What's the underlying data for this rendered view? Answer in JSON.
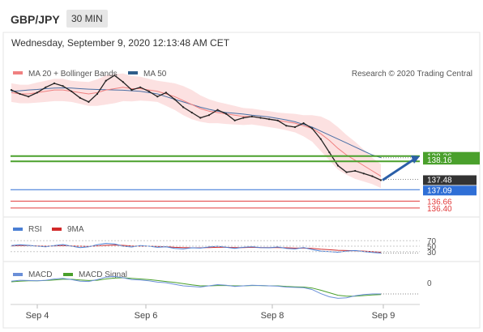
{
  "header": {
    "symbol": "GBP/JPY",
    "timeframe": "30 MIN",
    "timestamp": "Wednesday, September 9, 2020 12:13:48 AM CET"
  },
  "colors": {
    "price": "#222222",
    "ma20": "#f08080",
    "band_fill": "#fbd4d4",
    "ma50": "#4a6fa5",
    "resistance": "#4aa02c",
    "pivot": "#333333",
    "support_blue": "#2f6fd6",
    "support_red": "#e23b3b",
    "arrow": "#2b5fa8",
    "rsi": "#4a7fd4",
    "rsi_ma": "#d22a2a",
    "macd": "#6a8fd8",
    "macd_signal": "#4aa02c"
  },
  "chart_data": [
    {
      "type": "line",
      "name": "price",
      "legend": [
        {
          "label": "MA 20 + Bollinger Bands",
          "color": "#f08080"
        },
        {
          "label": "MA 50",
          "color": "#2f5d8a"
        }
      ],
      "credit": "Research © 2020 Trading Central",
      "x_ticks": [
        "Sep 4",
        "Sep 6",
        "Sep 8",
        "Sep 9"
      ],
      "close": [
        140.85,
        140.7,
        140.6,
        140.75,
        140.95,
        141.1,
        141.0,
        140.8,
        140.55,
        140.4,
        140.7,
        141.2,
        141.4,
        141.15,
        140.85,
        140.95,
        140.8,
        140.6,
        140.75,
        140.5,
        140.2,
        140.0,
        139.8,
        139.9,
        140.1,
        139.95,
        139.7,
        139.8,
        139.85,
        139.8,
        139.75,
        139.7,
        139.5,
        139.45,
        139.6,
        139.4,
        139.0,
        138.5,
        138.0,
        137.75,
        137.8,
        137.7,
        137.6,
        137.45
      ],
      "ma20": [
        140.75,
        140.7,
        140.7,
        140.75,
        140.8,
        140.85,
        140.85,
        140.8,
        140.75,
        140.7,
        140.75,
        140.85,
        140.9,
        140.95,
        140.9,
        140.9,
        140.85,
        140.8,
        140.7,
        140.6,
        140.45,
        140.3,
        140.15,
        140.05,
        140.0,
        139.95,
        139.9,
        139.85,
        139.85,
        139.8,
        139.75,
        139.7,
        139.65,
        139.6,
        139.5,
        139.4,
        139.2,
        138.95,
        138.65,
        138.4,
        138.2,
        138.0,
        137.8,
        137.6
      ],
      "ma50": [
        140.8,
        140.82,
        140.85,
        140.87,
        140.9,
        140.92,
        140.93,
        140.92,
        140.9,
        140.88,
        140.87,
        140.86,
        140.85,
        140.84,
        140.82,
        140.8,
        140.75,
        140.7,
        140.6,
        140.5,
        140.4,
        140.3,
        140.2,
        140.12,
        140.05,
        140.0,
        139.97,
        139.94,
        139.9,
        139.87,
        139.83,
        139.78,
        139.72,
        139.65,
        139.55,
        139.45,
        139.3,
        139.15,
        139.0,
        138.85,
        138.7,
        138.55,
        138.4,
        138.3
      ],
      "band_width": [
        0.35,
        0.35,
        0.35,
        0.38,
        0.4,
        0.42,
        0.42,
        0.4,
        0.42,
        0.45,
        0.5,
        0.55,
        0.55,
        0.52,
        0.48,
        0.45,
        0.42,
        0.4,
        0.45,
        0.5,
        0.55,
        0.55,
        0.5,
        0.45,
        0.4,
        0.38,
        0.35,
        0.32,
        0.3,
        0.3,
        0.3,
        0.3,
        0.32,
        0.35,
        0.4,
        0.5,
        0.65,
        0.75,
        0.8,
        0.75,
        0.7,
        0.6,
        0.5,
        0.45
      ],
      "levels": [
        {
          "value": 138.36,
          "label": "138.36",
          "color": "#4aa02c"
        },
        {
          "value": 138.16,
          "label": "138.16",
          "color": "#4aa02c"
        },
        {
          "value": 137.48,
          "label": "137.48",
          "color": "#333333"
        },
        {
          "value": 137.09,
          "label": "137.09",
          "color": "#2f6fd6"
        },
        {
          "value": 136.66,
          "label": "136.66",
          "color": "#e23b3b"
        },
        {
          "value": 136.4,
          "label": "136.40",
          "color": "#e23b3b"
        }
      ],
      "ylim": [
        136.0,
        141.8
      ]
    },
    {
      "type": "line",
      "name": "RSI",
      "legend": [
        {
          "label": "RSI",
          "color": "#4a7fd4"
        },
        {
          "label": "9MA",
          "color": "#d22a2a"
        }
      ],
      "y_ticks": [
        "70",
        "50",
        "30"
      ],
      "rsi": [
        52,
        55,
        53,
        50,
        48,
        52,
        56,
        50,
        45,
        48,
        55,
        60,
        58,
        50,
        47,
        52,
        50,
        46,
        48,
        42,
        40,
        44,
        43,
        47,
        50,
        46,
        42,
        46,
        48,
        45,
        44,
        47,
        42,
        40,
        45,
        38,
        32,
        30,
        28,
        32,
        34,
        30,
        27,
        25
      ],
      "ma9": [
        51,
        52,
        52,
        51,
        50,
        51,
        52,
        51,
        50,
        49,
        51,
        53,
        54,
        53,
        51,
        50,
        50,
        49,
        48,
        46,
        45,
        44,
        44,
        45,
        46,
        46,
        45,
        45,
        46,
        45,
        45,
        45,
        44,
        43,
        43,
        42,
        39,
        37,
        35,
        34,
        33,
        32,
        30,
        28
      ],
      "ylim": [
        0,
        100
      ]
    },
    {
      "type": "line",
      "name": "MACD",
      "legend": [
        {
          "label": "MACD",
          "color": "#6a8fd8"
        },
        {
          "label": "MACD Signal",
          "color": "#4aa02c"
        }
      ],
      "y_ticks": [
        "0"
      ],
      "macd": [
        0.05,
        0.08,
        0.07,
        0.06,
        0.08,
        0.12,
        0.14,
        0.1,
        0.05,
        0.04,
        0.1,
        0.18,
        0.2,
        0.16,
        0.1,
        0.09,
        0.06,
        0.02,
        0.0,
        -0.05,
        -0.1,
        -0.12,
        -0.14,
        -0.1,
        -0.06,
        -0.08,
        -0.12,
        -0.1,
        -0.08,
        -0.09,
        -0.1,
        -0.11,
        -0.14,
        -0.15,
        -0.16,
        -0.22,
        -0.35,
        -0.45,
        -0.5,
        -0.48,
        -0.42,
        -0.38,
        -0.36,
        -0.36
      ],
      "signal": [
        0.03,
        0.05,
        0.06,
        0.06,
        0.07,
        0.09,
        0.11,
        0.11,
        0.09,
        0.07,
        0.08,
        0.12,
        0.15,
        0.16,
        0.14,
        0.12,
        0.1,
        0.07,
        0.04,
        0.01,
        -0.03,
        -0.07,
        -0.1,
        -0.1,
        -0.09,
        -0.09,
        -0.1,
        -0.1,
        -0.09,
        -0.09,
        -0.1,
        -0.1,
        -0.12,
        -0.13,
        -0.14,
        -0.17,
        -0.24,
        -0.32,
        -0.4,
        -0.43,
        -0.43,
        -0.41,
        -0.39,
        -0.38
      ],
      "ylim": [
        -0.8,
        0.6
      ]
    }
  ]
}
